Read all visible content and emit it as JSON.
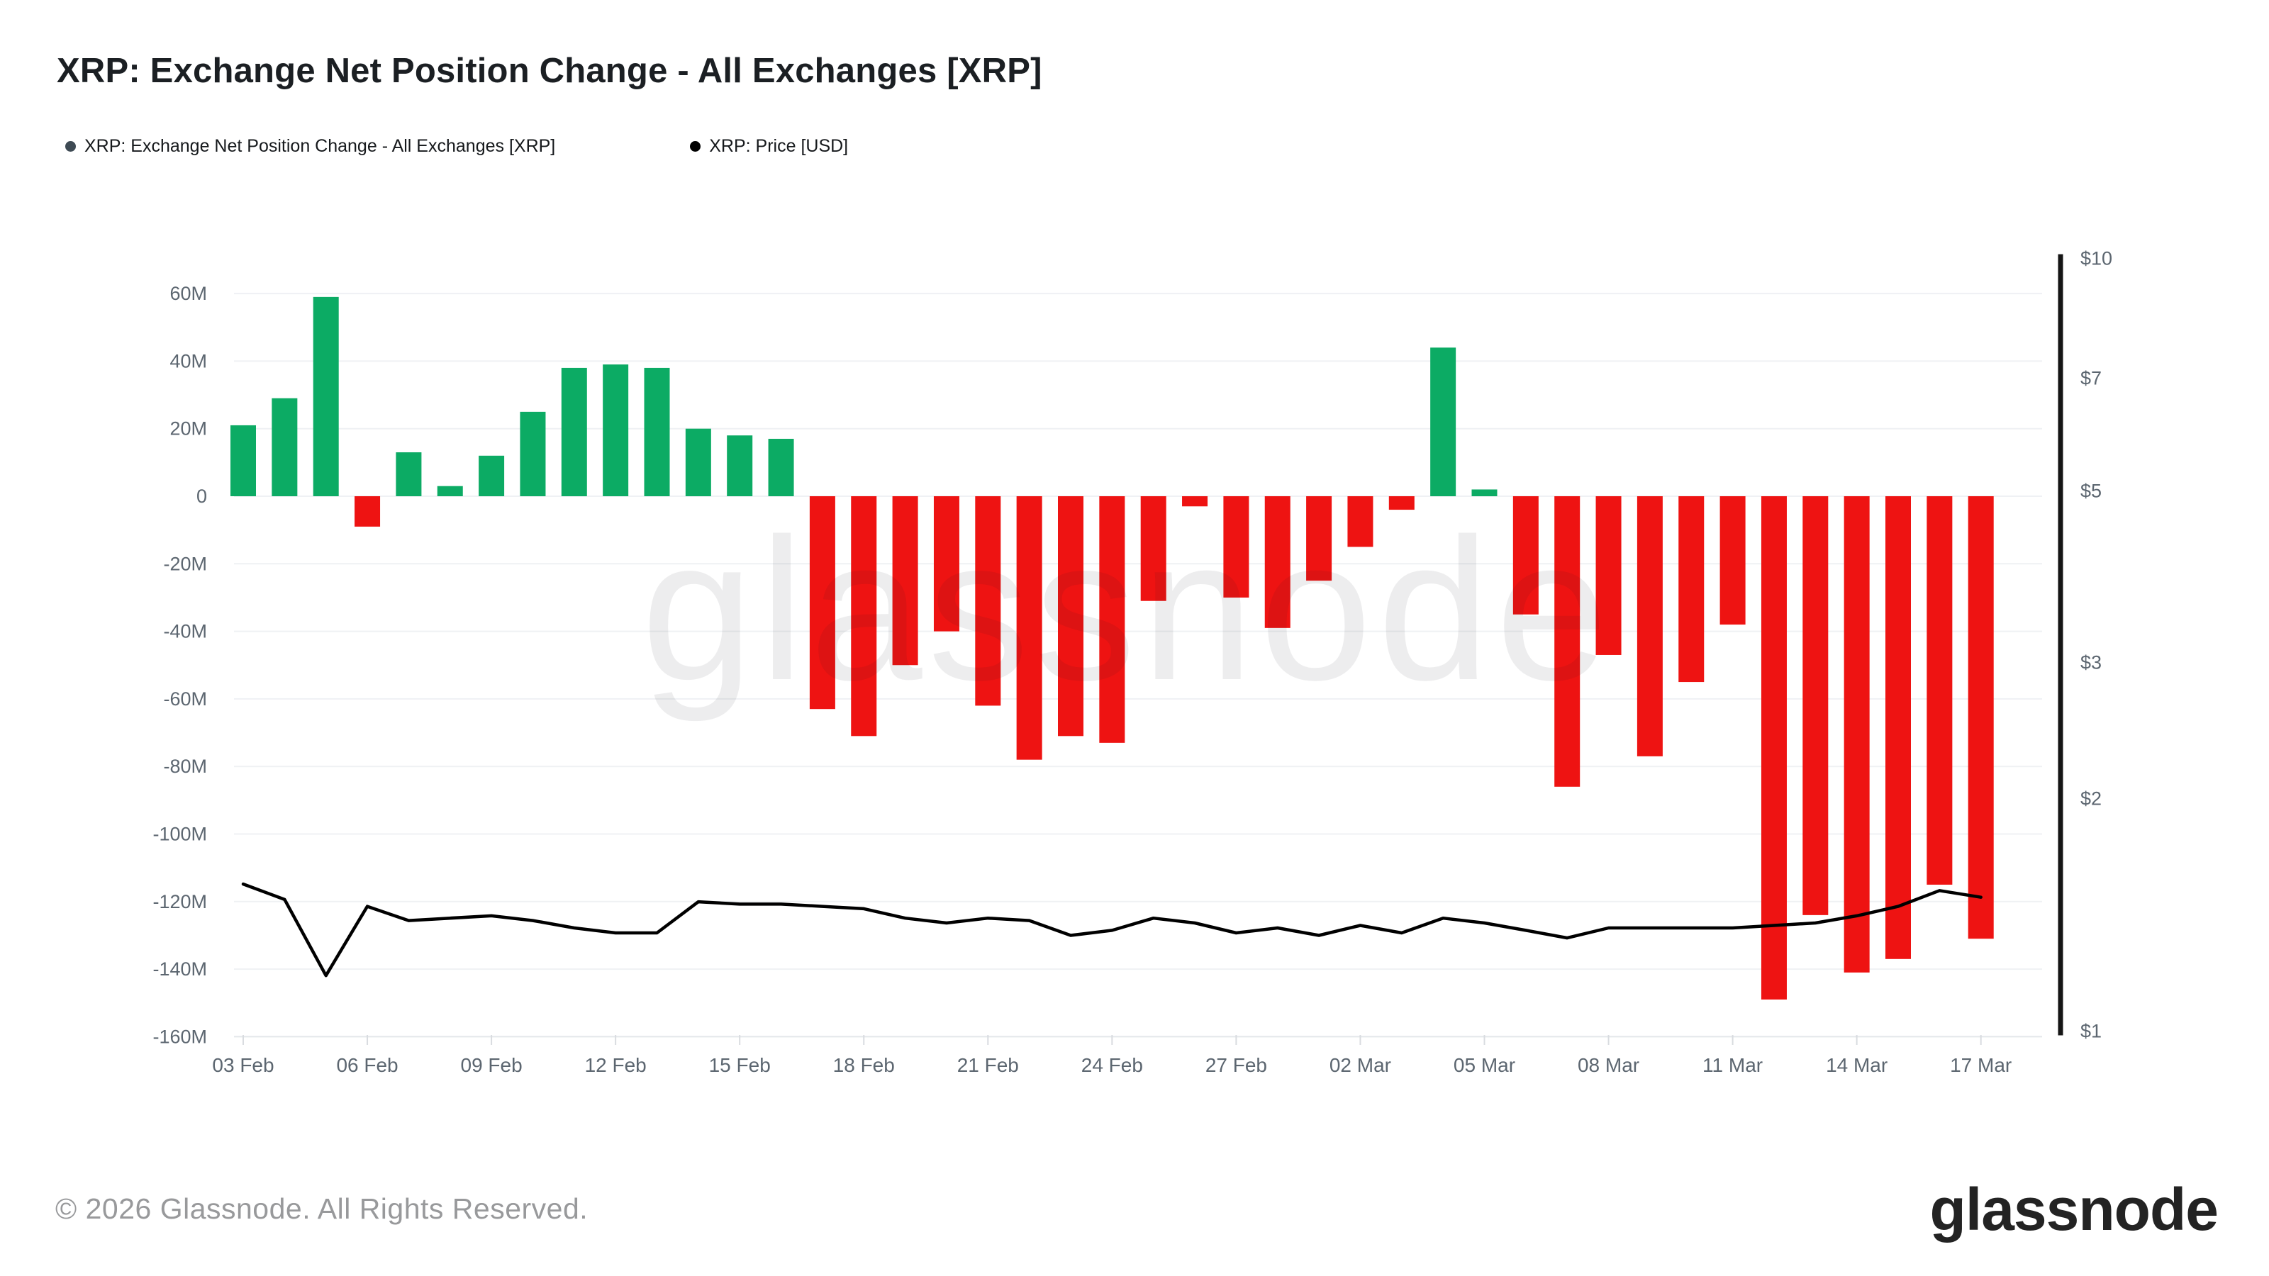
{
  "page": {
    "title": "XRP: Exchange Net Position Change - All Exchanges [XRP]"
  },
  "legend": {
    "items": [
      {
        "label": "XRP: Exchange Net Position Change - All Exchanges [XRP]",
        "color": "#3e4a54"
      },
      {
        "label": "XRP: Price [USD]",
        "color": "#000000"
      }
    ]
  },
  "watermark_text": "glassnode",
  "footer": {
    "copyright": "© 2026 Glassnode. All Rights Reserved.",
    "brand": "glassnode"
  },
  "colors": {
    "bar_positive": "#0cab64",
    "bar_negative": "#ee1312",
    "price_line": "#000000",
    "grid": "#eff1f4",
    "grid_baseline": "#e3e6ea",
    "tick_mark": "#d9dce0",
    "axis_label": "#5c6670",
    "price_axis_spine": "#151515",
    "watermark": "rgba(25,28,32,0.08)"
  },
  "chart_data": {
    "type": "bar",
    "title": "XRP: Exchange Net Position Change - All Exchanges [XRP]",
    "grid": true,
    "legend_position": "top-left",
    "categories": [
      "03 Feb",
      "04 Feb",
      "05 Feb",
      "06 Feb",
      "07 Feb",
      "08 Feb",
      "09 Feb",
      "10 Feb",
      "11 Feb",
      "12 Feb",
      "13 Feb",
      "14 Feb",
      "15 Feb",
      "16 Feb",
      "17 Feb",
      "18 Feb",
      "19 Feb",
      "20 Feb",
      "21 Feb",
      "22 Feb",
      "23 Feb",
      "24 Feb",
      "25 Feb",
      "26 Feb",
      "27 Feb",
      "28 Feb",
      "01 Mar",
      "02 Mar",
      "03 Mar",
      "04 Mar",
      "05 Mar",
      "06 Mar",
      "07 Mar",
      "08 Mar",
      "09 Mar",
      "10 Mar",
      "11 Mar",
      "12 Mar",
      "13 Mar",
      "14 Mar",
      "15 Mar",
      "16 Mar",
      "17 Mar"
    ],
    "series": [
      {
        "name": "XRP: Exchange Net Position Change - All Exchanges [XRP]",
        "type": "bar",
        "axis": "left",
        "unit": "XRP (millions)",
        "values": [
          21,
          29,
          59,
          -9,
          13,
          3,
          12,
          25,
          38,
          39,
          38,
          20,
          18,
          17,
          -63,
          -71,
          -50,
          -40,
          -62,
          -78,
          -71,
          -73,
          -31,
          -3,
          -30,
          -39,
          -25,
          -15,
          -4,
          44,
          2,
          -35,
          -86,
          -47,
          -77,
          -55,
          -38,
          -149,
          -124,
          -141,
          -137,
          -115,
          -131
        ]
      },
      {
        "name": "XRP: Price [USD]",
        "type": "line",
        "axis": "right",
        "unit": "USD",
        "values": [
          1.55,
          1.48,
          1.18,
          1.45,
          1.39,
          1.4,
          1.41,
          1.39,
          1.36,
          1.34,
          1.34,
          1.47,
          1.46,
          1.46,
          1.45,
          1.44,
          1.4,
          1.38,
          1.4,
          1.39,
          1.33,
          1.35,
          1.4,
          1.38,
          1.34,
          1.36,
          1.33,
          1.37,
          1.34,
          1.4,
          1.38,
          1.35,
          1.32,
          1.36,
          1.36,
          1.36,
          1.36,
          1.37,
          1.38,
          1.41,
          1.45,
          1.52,
          1.49
        ]
      }
    ],
    "left_axis": {
      "tick_values": [
        60,
        40,
        20,
        0,
        -20,
        -40,
        -60,
        -80,
        -100,
        -120,
        -140,
        -160
      ],
      "tick_labels": [
        "60M",
        "40M",
        "20M",
        "0",
        "-20M",
        "-40M",
        "-60M",
        "-80M",
        "-100M",
        "-120M",
        "-140M",
        "-160M"
      ],
      "ylim": [
        -160,
        60
      ],
      "unit": "M XRP"
    },
    "right_axis": {
      "scale": "log",
      "tick_values": [
        10,
        7,
        5,
        3,
        2,
        1
      ],
      "tick_labels": [
        "$10",
        "$7",
        "$5",
        "$3",
        "$2",
        "$1"
      ],
      "ylim": [
        1,
        10
      ],
      "unit": "USD"
    },
    "x_tick_every": 3,
    "x_tick_labels": [
      "03 Feb",
      "06 Feb",
      "09 Feb",
      "12 Feb",
      "15 Feb",
      "18 Feb",
      "21 Feb",
      "24 Feb",
      "27 Feb",
      "02 Mar",
      "05 Mar",
      "08 Mar",
      "11 Mar",
      "14 Mar",
      "17 Mar"
    ]
  }
}
